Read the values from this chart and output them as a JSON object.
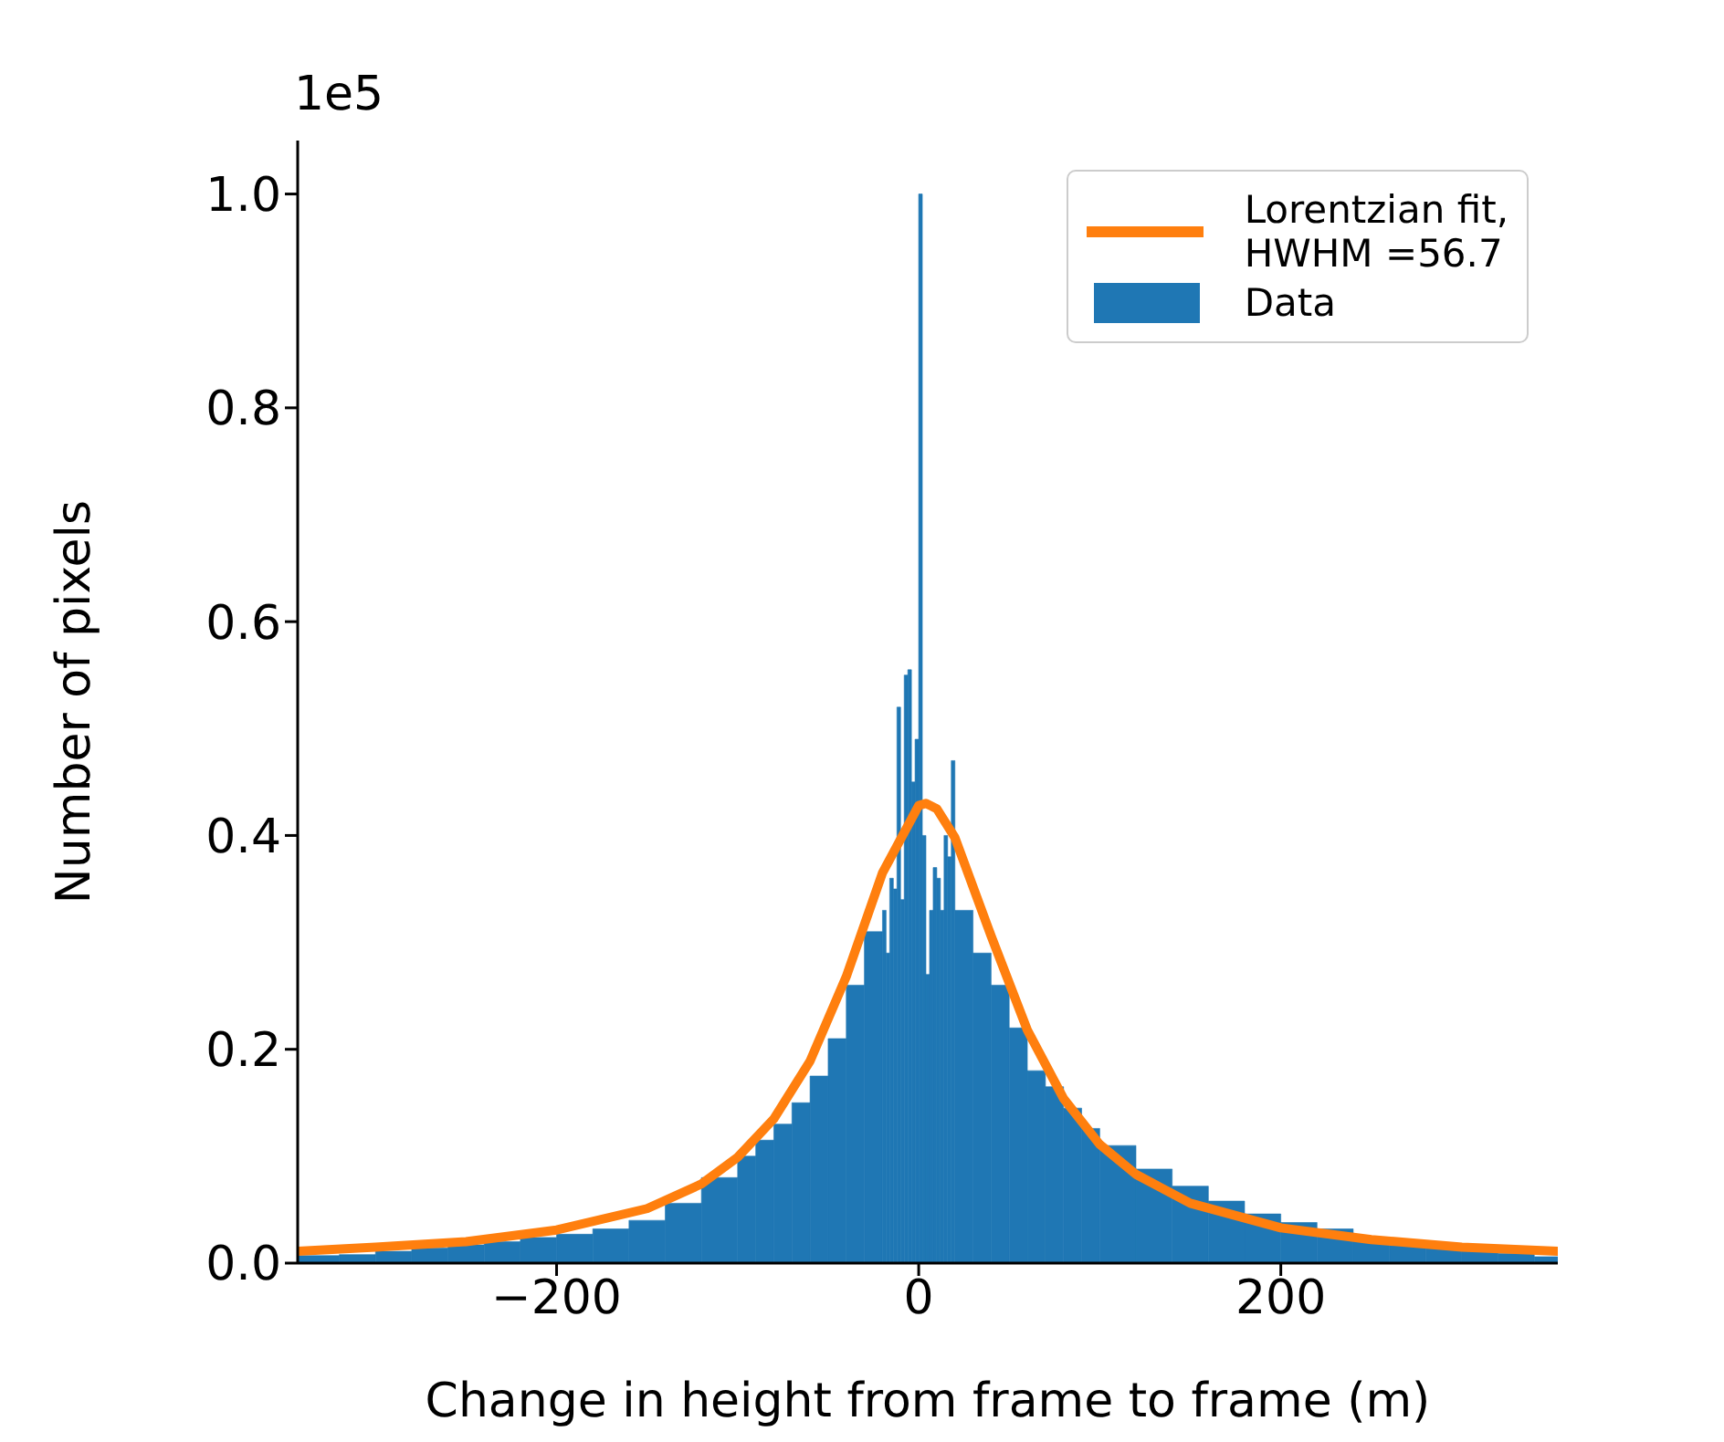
{
  "chart_data": {
    "type": "histogram",
    "xlabel": "Change in height from frame to frame (m)",
    "ylabel": "Number of pixels",
    "annotations": [
      "1e5"
    ],
    "legend": "top right",
    "xlim": [
      -343,
      353
    ],
    "ylim": [
      0,
      1.05
    ],
    "xticks": [
      {
        "value": -200,
        "label": "−200"
      },
      0,
      200
    ],
    "yticks": [
      {
        "value": 0,
        "label": "0.0"
      },
      0.2,
      0.4,
      0.6,
      0.8,
      {
        "value": 1,
        "label": "1.0"
      }
    ],
    "bins": [
      -343,
      -320,
      -300,
      -280,
      -260,
      -240,
      -220,
      -200,
      -180,
      -160,
      -140,
      -120,
      -100,
      -90,
      -80,
      -70,
      -60,
      -50,
      -40,
      -30,
      -20,
      -18,
      -16,
      -14,
      -12,
      -10,
      -8,
      -6,
      -4,
      -2,
      0,
      2,
      4,
      6,
      8,
      10,
      12,
      14,
      16,
      18,
      20,
      30,
      40,
      50,
      60,
      70,
      80,
      90,
      100,
      120,
      140,
      160,
      180,
      200,
      220,
      240,
      260,
      280,
      300,
      320,
      340,
      353
    ],
    "series": [
      {
        "name": "Lorentzian fit,\nHWHM =56.7",
        "type": "line",
        "color": "#ff7f0e",
        "x": [
          -343,
          -300,
          -250,
          -200,
          -150,
          -120,
          -100,
          -80,
          -60,
          -40,
          -20,
          0,
          4,
          10,
          20,
          40,
          60,
          80,
          100,
          120,
          150,
          200,
          250,
          300,
          353
        ],
        "values": [
          0.011,
          0.015,
          0.02,
          0.031,
          0.051,
          0.074,
          0.099,
          0.135,
          0.189,
          0.268,
          0.365,
          0.428,
          0.43,
          0.425,
          0.398,
          0.306,
          0.218,
          0.154,
          0.111,
          0.083,
          0.056,
          0.033,
          0.022,
          0.015,
          0.011
        ]
      },
      {
        "name": "Data",
        "color": "#1f77b4",
        "values": [
          0.007,
          0.008,
          0.011,
          0.014,
          0.017,
          0.02,
          0.024,
          0.027,
          0.032,
          0.04,
          0.056,
          0.08,
          0.1,
          0.115,
          0.13,
          0.15,
          0.175,
          0.21,
          0.26,
          0.31,
          0.33,
          0.29,
          0.36,
          0.35,
          0.52,
          0.34,
          0.55,
          0.555,
          0.45,
          0.49,
          1.0,
          0.4,
          0.27,
          0.33,
          0.37,
          0.36,
          0.33,
          0.4,
          0.38,
          0.47,
          0.33,
          0.29,
          0.26,
          0.22,
          0.18,
          0.165,
          0.145,
          0.126,
          0.11,
          0.088,
          0.072,
          0.058,
          0.046,
          0.038,
          0.032,
          0.024,
          0.019,
          0.016,
          0.013,
          0.009,
          0.006
        ]
      }
    ]
  }
}
